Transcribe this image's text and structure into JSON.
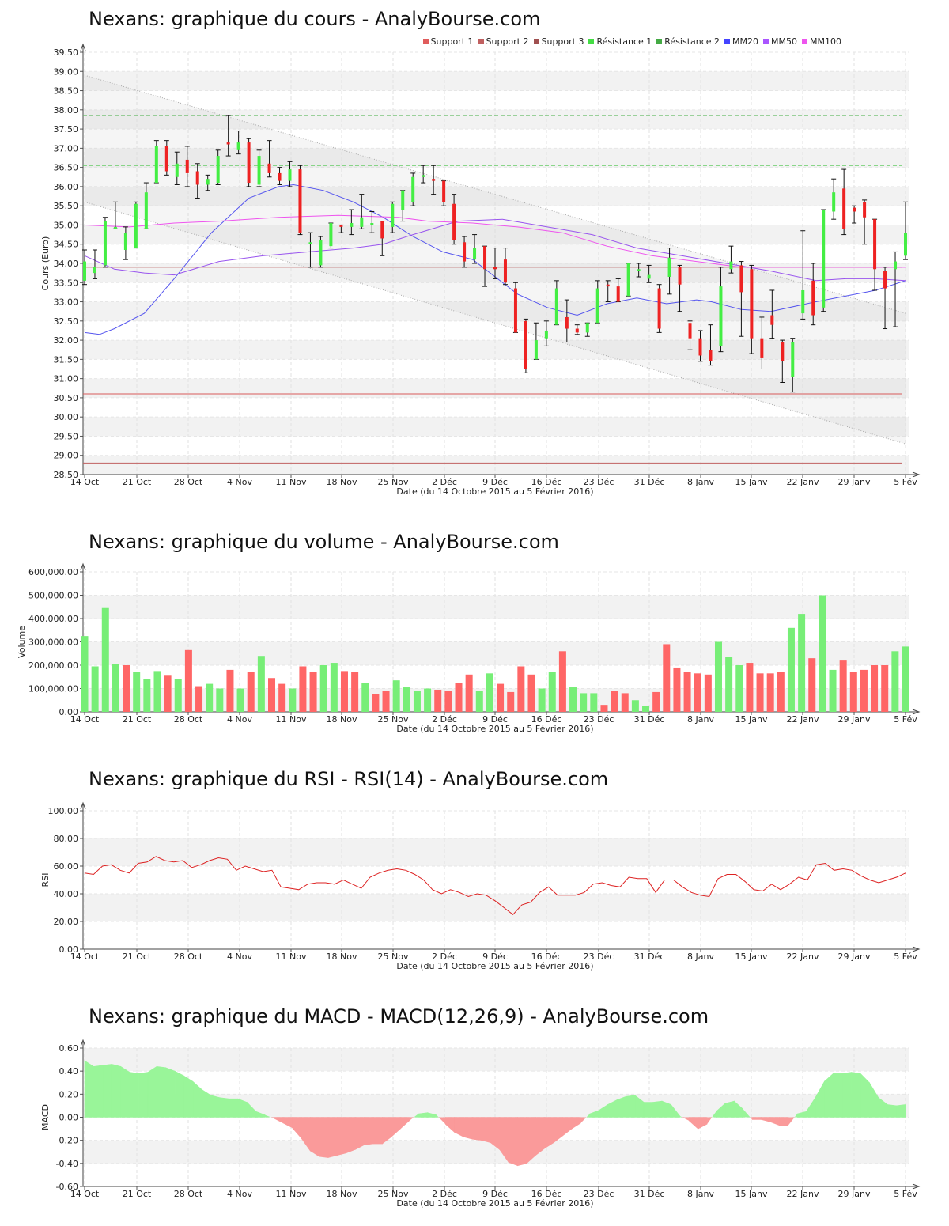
{
  "x_axis": {
    "date_label": "Date (du 14 Octobre 2015 au 5 Février 2016)",
    "ticks": [
      "14 Oct",
      "21 Oct",
      "28 Oct",
      "4 Nov",
      "11 Nov",
      "18 Nov",
      "25 Nov",
      "2 Déc",
      "9 Déc",
      "16 Déc",
      "23 Déc",
      "31 Déc",
      "8 Janv",
      "15 Janv",
      "22 Janv",
      "29 Janv",
      "5 Fév"
    ]
  },
  "price_panel": {
    "title": "Nexans: graphique du cours - AnalyBourse.com",
    "legend": [
      {
        "label": "Support 1",
        "color": "#e05c5c"
      },
      {
        "label": "Support 2",
        "color": "#c06060"
      },
      {
        "label": "Support 3",
        "color": "#a05050"
      },
      {
        "label": "Résistance 1",
        "color": "#44dd44"
      },
      {
        "label": "Résistance 2",
        "color": "#44aa44"
      },
      {
        "label": "MM20",
        "color": "#4444ff"
      },
      {
        "label": "MM50",
        "color": "#aa55ff"
      },
      {
        "label": "MM100",
        "color": "#ee55ee"
      }
    ]
  },
  "volume_panel": {
    "title": "Nexans: graphique du volume - AnalyBourse.com"
  },
  "rsi_panel": {
    "title": "Nexans: graphique du RSI - RSI(14) - AnalyBourse.com"
  },
  "macd_panel": {
    "title": "Nexans: graphique du MACD - MACD(12,26,9) - AnalyBourse.com"
  },
  "chart_data": [
    {
      "type": "candlestick",
      "title": "Nexans: graphique du cours - AnalyBourse.com",
      "xlabel": "Date (du 14 Octobre 2015 au 5 Février 2016)",
      "ylabel": "Cours (Euro)",
      "ylim": [
        28.5,
        39.5
      ],
      "y_ticks": [
        "28.50",
        "29.00",
        "29.50",
        "30.00",
        "30.50",
        "31.00",
        "31.50",
        "32.00",
        "32.50",
        "33.00",
        "33.50",
        "34.00",
        "34.50",
        "35.00",
        "35.50",
        "36.00",
        "36.50",
        "37.00",
        "37.50",
        "38.00",
        "38.50",
        "39.00",
        "39.50"
      ],
      "candles": [
        [
          33.55,
          34.05,
          34.35,
          33.45
        ],
        [
          33.75,
          33.9,
          34.35,
          33.6
        ],
        [
          33.95,
          35.1,
          35.2,
          33.9
        ],
        [
          34.9,
          34.95,
          35.6,
          34.9
        ],
        [
          34.35,
          34.8,
          34.95,
          34.1
        ],
        [
          34.4,
          35.55,
          35.6,
          34.4
        ],
        [
          34.9,
          35.85,
          36.1,
          34.9
        ],
        [
          36.1,
          37.05,
          37.2,
          36.1
        ],
        [
          37.05,
          36.4,
          37.2,
          36.3
        ],
        [
          36.25,
          36.6,
          36.9,
          36.05
        ],
        [
          36.7,
          36.35,
          37.05,
          36.0
        ],
        [
          36.4,
          36.05,
          36.6,
          35.7
        ],
        [
          36.05,
          36.2,
          36.3,
          35.9
        ],
        [
          36.1,
          36.8,
          36.95,
          36.05
        ],
        [
          37.15,
          37.1,
          37.85,
          36.8
        ],
        [
          36.95,
          37.15,
          37.45,
          36.85
        ],
        [
          37.15,
          36.1,
          37.25,
          36.0
        ],
        [
          36.05,
          36.8,
          36.95,
          36.0
        ],
        [
          36.6,
          36.35,
          37.2,
          36.25
        ],
        [
          36.35,
          36.15,
          36.5,
          36.05
        ],
        [
          36.15,
          36.45,
          36.65,
          36.0
        ],
        [
          36.45,
          34.8,
          36.55,
          34.75
        ],
        [
          34.5,
          34.55,
          34.8,
          33.9
        ],
        [
          33.95,
          34.6,
          34.7,
          33.9
        ],
        [
          34.45,
          35.05,
          35.05,
          34.4
        ],
        [
          35.0,
          34.95,
          35.0,
          34.8
        ],
        [
          34.95,
          35.05,
          35.4,
          34.75
        ],
        [
          34.95,
          35.2,
          35.8,
          34.9
        ],
        [
          35.0,
          35.05,
          35.35,
          34.8
        ],
        [
          35.1,
          34.65,
          35.1,
          34.2
        ],
        [
          34.95,
          35.55,
          35.6,
          34.8
        ],
        [
          35.4,
          35.9,
          35.9,
          35.1
        ],
        [
          35.6,
          36.25,
          36.35,
          35.5
        ],
        [
          36.25,
          36.3,
          36.55,
          36.1
        ],
        [
          36.2,
          36.15,
          36.55,
          35.8
        ],
        [
          36.15,
          35.6,
          36.15,
          35.5
        ],
        [
          35.55,
          34.6,
          35.8,
          34.5
        ],
        [
          34.55,
          34.05,
          34.7,
          33.9
        ],
        [
          34.1,
          34.4,
          34.75,
          34.0
        ],
        [
          34.45,
          33.85,
          34.45,
          33.4
        ],
        [
          33.9,
          33.85,
          34.4,
          33.6
        ],
        [
          34.1,
          33.5,
          34.4,
          33.45
        ],
        [
          33.35,
          32.2,
          33.5,
          32.2
        ],
        [
          32.5,
          31.25,
          32.55,
          31.15
        ],
        [
          31.5,
          32.0,
          32.45,
          31.5
        ],
        [
          32.05,
          32.25,
          32.5,
          31.85
        ],
        [
          32.4,
          33.35,
          33.55,
          32.4
        ],
        [
          32.6,
          32.3,
          33.05,
          31.95
        ],
        [
          32.3,
          32.2,
          32.4,
          32.15
        ],
        [
          32.2,
          32.45,
          32.45,
          32.1
        ],
        [
          32.45,
          33.35,
          33.55,
          32.45
        ],
        [
          33.45,
          33.4,
          33.55,
          33.0
        ],
        [
          33.4,
          33.0,
          33.6,
          33.0
        ],
        [
          33.15,
          34.0,
          34.0,
          33.15
        ],
        [
          33.8,
          33.85,
          34.0,
          33.65
        ],
        [
          33.6,
          33.7,
          33.95,
          33.5
        ],
        [
          33.35,
          32.3,
          33.45,
          32.2
        ],
        [
          33.65,
          34.15,
          34.4,
          33.2
        ],
        [
          33.9,
          33.45,
          33.95,
          32.75
        ],
        [
          32.45,
          32.05,
          32.5,
          31.75
        ],
        [
          32.05,
          31.6,
          32.25,
          31.45
        ],
        [
          31.75,
          31.45,
          32.4,
          31.35
        ],
        [
          31.85,
          33.4,
          33.9,
          31.7
        ],
        [
          33.85,
          34.05,
          34.45,
          33.75
        ],
        [
          33.95,
          33.25,
          34.05,
          32.1
        ],
        [
          33.85,
          32.05,
          33.95,
          31.65
        ],
        [
          32.05,
          31.55,
          32.6,
          31.25
        ],
        [
          32.65,
          32.4,
          33.3,
          32.05
        ],
        [
          31.95,
          31.45,
          32.0,
          30.9
        ],
        [
          31.05,
          31.95,
          32.05,
          30.65
        ],
        [
          32.7,
          33.3,
          34.85,
          32.55
        ],
        [
          33.55,
          32.65,
          34.0,
          32.4
        ],
        [
          32.85,
          35.4,
          35.4,
          32.75
        ],
        [
          35.35,
          35.85,
          36.2,
          35.15
        ],
        [
          35.95,
          34.9,
          36.45,
          34.75
        ],
        [
          35.45,
          35.35,
          35.5,
          35.05
        ],
        [
          35.6,
          35.2,
          35.65,
          34.5
        ],
        [
          35.15,
          33.85,
          35.15,
          33.3
        ],
        [
          33.8,
          33.35,
          33.9,
          32.3
        ],
        [
          33.85,
          34.05,
          34.3,
          32.35
        ],
        [
          34.2,
          34.8,
          35.6,
          34.1
        ]
      ],
      "support_1": 30.6,
      "support_2": 28.8,
      "support_3": 33.9,
      "resistance_1": 36.55,
      "resistance_2": 37.85,
      "ma20": [
        [
          0,
          32.2
        ],
        [
          2,
          32.15
        ],
        [
          4,
          32.3
        ],
        [
          8,
          32.7
        ],
        [
          12,
          33.6
        ],
        [
          17,
          34.8
        ],
        [
          22,
          35.7
        ],
        [
          26,
          36.0
        ],
        [
          28,
          36.05
        ],
        [
          32,
          35.9
        ],
        [
          36,
          35.6
        ],
        [
          40,
          35.2
        ],
        [
          44,
          34.7
        ],
        [
          48,
          34.3
        ],
        [
          52,
          34.1
        ],
        [
          58,
          33.2
        ],
        [
          62,
          32.85
        ],
        [
          66,
          32.65
        ],
        [
          70,
          32.95
        ],
        [
          74,
          33.1
        ],
        [
          78,
          32.95
        ],
        [
          82,
          33.05
        ],
        [
          84,
          33.0
        ],
        [
          88,
          32.8
        ],
        [
          92,
          32.75
        ],
        [
          98,
          33.0
        ],
        [
          102,
          33.15
        ],
        [
          106,
          33.3
        ],
        [
          110,
          33.55
        ]
      ],
      "ma50": [
        [
          0,
          34.2
        ],
        [
          4,
          33.85
        ],
        [
          8,
          33.75
        ],
        [
          12,
          33.7
        ],
        [
          18,
          34.05
        ],
        [
          24,
          34.2
        ],
        [
          30,
          34.3
        ],
        [
          36,
          34.4
        ],
        [
          40,
          34.5
        ],
        [
          44,
          34.75
        ],
        [
          50,
          35.1
        ],
        [
          56,
          35.15
        ],
        [
          62,
          34.95
        ],
        [
          68,
          34.75
        ],
        [
          74,
          34.4
        ],
        [
          80,
          34.2
        ],
        [
          86,
          34.0
        ],
        [
          92,
          33.8
        ],
        [
          98,
          33.55
        ],
        [
          102,
          33.6
        ],
        [
          106,
          33.6
        ],
        [
          110,
          33.55
        ]
      ],
      "ma100": [
        [
          0,
          35.0
        ],
        [
          6,
          34.95
        ],
        [
          12,
          35.05
        ],
        [
          18,
          35.1
        ],
        [
          26,
          35.2
        ],
        [
          34,
          35.25
        ],
        [
          42,
          35.2
        ],
        [
          46,
          35.1
        ],
        [
          52,
          35.05
        ],
        [
          58,
          34.95
        ],
        [
          64,
          34.8
        ],
        [
          70,
          34.45
        ],
        [
          76,
          34.2
        ],
        [
          82,
          34.05
        ],
        [
          88,
          33.9
        ],
        [
          94,
          33.9
        ],
        [
          100,
          33.9
        ],
        [
          106,
          33.9
        ],
        [
          110,
          33.9
        ]
      ],
      "trend_channel": {
        "upper": [
          [
            0,
            38.9
          ],
          [
            110,
            32.7
          ]
        ],
        "lower": [
          [
            0,
            35.6
          ],
          [
            110,
            29.3
          ]
        ]
      }
    },
    {
      "type": "bar",
      "title": "Nexans: graphique du volume - AnalyBourse.com",
      "xlabel": "Date (du 14 Octobre 2015 au 5 Février 2016)",
      "ylabel": "Volume",
      "ylim": [
        0,
        600000
      ],
      "y_ticks": [
        "0.00",
        "100,000.00",
        "200,000.00",
        "300,000.00",
        "400,000.00",
        "500,000.00",
        "600,000.00"
      ],
      "values": [
        325000,
        195000,
        445000,
        205000,
        200000,
        170000,
        140000,
        175000,
        155000,
        140000,
        265000,
        110000,
        120000,
        100000,
        180000,
        100000,
        170000,
        240000,
        145000,
        120000,
        100000,
        195000,
        170000,
        200000,
        210000,
        175000,
        170000,
        125000,
        75000,
        90000,
        135000,
        105000,
        90000,
        100000,
        95000,
        90000,
        125000,
        160000,
        90000,
        165000,
        120000,
        85000,
        195000,
        160000,
        100000,
        170000,
        260000,
        105000,
        80000,
        80000,
        30000,
        90000,
        80000,
        50000,
        25000,
        85000,
        290000,
        190000,
        170000,
        165000,
        160000,
        300000,
        235000,
        200000,
        210000,
        165000,
        165000,
        170000,
        360000,
        420000,
        230000,
        500000,
        180000,
        220000,
        170000,
        180000,
        200000,
        200000,
        260000,
        280000
      ],
      "up": [
        1,
        1,
        1,
        1,
        0,
        1,
        1,
        1,
        0,
        1,
        0,
        0,
        1,
        1,
        0,
        1,
        0,
        1,
        0,
        0,
        1,
        0,
        0,
        1,
        1,
        0,
        0,
        1,
        0,
        0,
        1,
        1,
        1,
        1,
        0,
        0,
        0,
        0,
        1,
        1,
        0,
        0,
        0,
        0,
        1,
        1,
        0,
        1,
        1,
        1,
        0,
        0,
        0,
        1,
        1,
        0,
        0,
        0,
        0,
        0,
        0,
        1,
        1,
        1,
        0,
        0,
        0,
        0,
        1,
        1,
        0,
        1,
        1,
        0,
        0,
        0,
        0,
        0,
        1,
        1
      ]
    },
    {
      "type": "line",
      "title": "Nexans: graphique du RSI - RSI(14) - AnalyBourse.com",
      "xlabel": "Date (du 14 Octobre 2015 au 5 Février 2016)",
      "ylabel": "RSI",
      "ylim": [
        0,
        100
      ],
      "reference_line": 50,
      "y_ticks": [
        "0.00",
        "20.00",
        "40.00",
        "60.00",
        "80.00",
        "100.00"
      ],
      "values": [
        55,
        54,
        60,
        61,
        57,
        55,
        62,
        63,
        67,
        64,
        63,
        64,
        59,
        61,
        64,
        66,
        65,
        57,
        60,
        58,
        56,
        57,
        45,
        44,
        43,
        47,
        48,
        48,
        47,
        50,
        47,
        44,
        52,
        55,
        57,
        58,
        57,
        54,
        50,
        43,
        40,
        43,
        41,
        38,
        40,
        39,
        35,
        30,
        25,
        32,
        34,
        41,
        45,
        39,
        39,
        39,
        41,
        47,
        48,
        46,
        45,
        52,
        51,
        51,
        41,
        50,
        50,
        45,
        41,
        39,
        38,
        51,
        54,
        54,
        49,
        43,
        42,
        47,
        43,
        47,
        52,
        50,
        61,
        62,
        57,
        58,
        57,
        53,
        50,
        48,
        50,
        52,
        55
      ]
    },
    {
      "type": "area",
      "title": "Nexans: graphique du MACD - MACD(12,26,9) - AnalyBourse.com",
      "xlabel": "Date (du 14 Octobre 2015 au 5 Février 2016)",
      "ylabel": "MACD",
      "ylim": [
        -0.6,
        0.6
      ],
      "y_ticks": [
        "-0.60",
        "-0.40",
        "-0.20",
        "0.00",
        "0.20",
        "0.40",
        "0.60"
      ],
      "values": [
        0.49,
        0.44,
        0.45,
        0.46,
        0.44,
        0.39,
        0.38,
        0.39,
        0.44,
        0.43,
        0.4,
        0.36,
        0.31,
        0.24,
        0.19,
        0.17,
        0.16,
        0.16,
        0.13,
        0.05,
        0.02,
        -0.01,
        -0.05,
        -0.09,
        -0.18,
        -0.29,
        -0.34,
        -0.35,
        -0.33,
        -0.31,
        -0.28,
        -0.24,
        -0.23,
        -0.23,
        -0.17,
        -0.1,
        -0.03,
        0.03,
        0.04,
        0.02,
        -0.06,
        -0.13,
        -0.17,
        -0.19,
        -0.2,
        -0.22,
        -0.28,
        -0.39,
        -0.42,
        -0.4,
        -0.33,
        -0.27,
        -0.22,
        -0.16,
        -0.1,
        -0.05,
        0.03,
        0.06,
        0.11,
        0.15,
        0.18,
        0.19,
        0.13,
        0.13,
        0.14,
        0.11,
        0.01,
        -0.03,
        -0.1,
        -0.06,
        0.05,
        0.12,
        0.14,
        0.07,
        -0.02,
        -0.02,
        -0.04,
        -0.07,
        -0.07,
        0.03,
        0.05,
        0.17,
        0.31,
        0.38,
        0.38,
        0.39,
        0.38,
        0.3,
        0.17,
        0.11,
        0.1,
        0.11
      ]
    }
  ]
}
